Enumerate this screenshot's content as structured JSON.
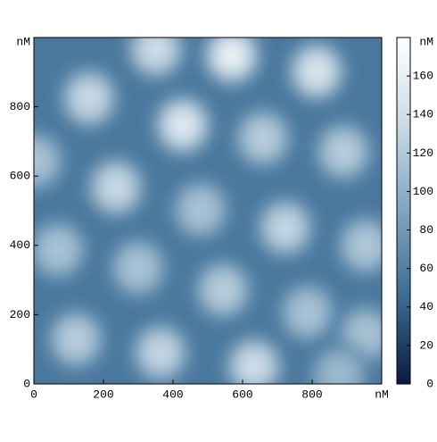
{
  "chart_data": {
    "type": "heatmap",
    "xlim": [
      0,
      1000
    ],
    "ylim": [
      0,
      1000
    ],
    "xticks": [
      0,
      200,
      400,
      600,
      800,
      {
        "value": 1000,
        "label": "nM"
      }
    ],
    "yticks": [
      0,
      200,
      400,
      600,
      800,
      {
        "value": 1000,
        "label": "nM"
      }
    ],
    "clim": [
      0,
      180
    ],
    "cticks": [
      0,
      20,
      40,
      60,
      80,
      100,
      120,
      140,
      160,
      {
        "value": 180,
        "label": "nM"
      }
    ],
    "colormap": [
      "#0b1a3e",
      "#3b6b93",
      "#80a5c0",
      "#cbdbe6",
      "#ffffff"
    ],
    "base": 55,
    "peaks": [
      {
        "x": 351,
        "y": 966,
        "z": 150
      },
      {
        "x": 569,
        "y": 948,
        "z": 175
      },
      {
        "x": 813,
        "y": 902,
        "z": 160
      },
      {
        "x": 159,
        "y": 825,
        "z": 145
      },
      {
        "x": 428,
        "y": 747,
        "z": 165
      },
      {
        "x": 659,
        "y": 709,
        "z": 130
      },
      {
        "x": 890,
        "y": 670,
        "z": 130
      },
      {
        "x": 5,
        "y": 644,
        "z": 120
      },
      {
        "x": 236,
        "y": 567,
        "z": 145
      },
      {
        "x": 479,
        "y": 503,
        "z": 120
      },
      {
        "x": 723,
        "y": 451,
        "z": 140
      },
      {
        "x": 954,
        "y": 399,
        "z": 125
      },
      {
        "x": 69,
        "y": 387,
        "z": 120
      },
      {
        "x": 300,
        "y": 335,
        "z": 120
      },
      {
        "x": 544,
        "y": 271,
        "z": 130
      },
      {
        "x": 787,
        "y": 206,
        "z": 120
      },
      {
        "x": 121,
        "y": 129,
        "z": 130
      },
      {
        "x": 364,
        "y": 90,
        "z": 140
      },
      {
        "x": 633,
        "y": 51,
        "z": 150
      },
      {
        "x": 954,
        "y": 142,
        "z": 120
      },
      {
        "x": 877,
        "y": 26,
        "z": 110
      }
    ]
  }
}
